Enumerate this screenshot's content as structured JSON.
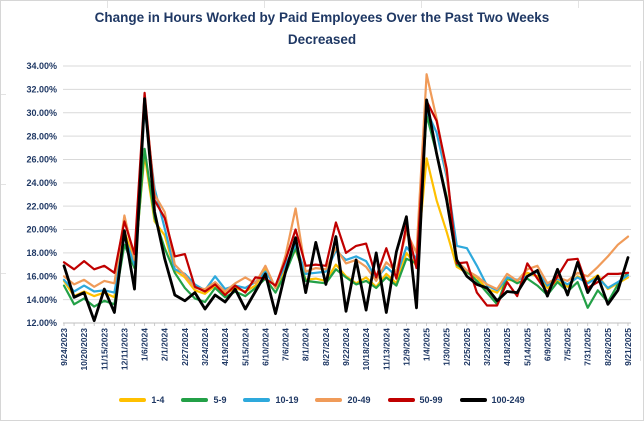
{
  "title": {
    "line1": "Change in Hours Worked by Paid Employees Over the Past Two Weeks",
    "line2": "Decreased"
  },
  "colors": {
    "title_text": "#1F3864",
    "axis_text": "#1F3864",
    "gridline": "#D9D9D9",
    "axis_line": "#BFBFBF",
    "background": "#FFFFFF"
  },
  "chart_data": {
    "type": "line",
    "title": "Change in Hours Worked by Paid Employees Over the Past Two Weeks Decreased",
    "legend_position": "bottom",
    "grid": "horizontal",
    "y_axis": {
      "min": 12,
      "max": 34,
      "step": 2,
      "format": "percent"
    },
    "y_tick_labels": [
      "12.00%",
      "14.00%",
      "16.00%",
      "18.00%",
      "20.00%",
      "22.00%",
      "24.00%",
      "26.00%",
      "28.00%",
      "30.00%",
      "32.00%",
      "34.00%"
    ],
    "x_label_interval": 2,
    "x_tick_labels": [
      "9/24/2023",
      "10/20/2023",
      "11/15/2023",
      "12/11/2023",
      "1/6/2024",
      "2/1/2024",
      "2/27/2024",
      "3/24/2024",
      "4/19/2024",
      "5/15/2024",
      "6/10/2024",
      "7/6/2024",
      "8/1/2024",
      "8/27/2024",
      "9/22/2024",
      "10/18/2024",
      "11/13/2024",
      "12/9/2024",
      "1/4/2025",
      "1/30/2025",
      "2/25/2025",
      "3/23/2025",
      "4/18/2025",
      "5/14/2025",
      "6/9/2025",
      "7/5/2025",
      "7/31/2025",
      "8/26/2025",
      "9/21/2025"
    ],
    "series": [
      {
        "name": "1-4",
        "color": "#FFC000",
        "values": [
          15.6,
          14.3,
          14.7,
          14.3,
          14.6,
          14.2,
          19.9,
          17.1,
          26.4,
          20.7,
          19.5,
          16.5,
          15.9,
          14.8,
          14.5,
          15.2,
          14.5,
          15.0,
          14.7,
          15.2,
          16.6,
          15.0,
          16.6,
          18.3,
          15.7,
          15.8,
          15.6,
          17.0,
          16.0,
          15.4,
          15.9,
          15.1,
          16.2,
          15.4,
          18.0,
          16.9,
          26.1,
          22.5,
          19.8,
          16.8,
          16.3,
          15.9,
          14.9,
          14.6,
          15.7,
          15.6,
          16.3,
          16.0,
          15.0,
          15.6,
          15.1,
          16.0,
          15.5,
          16.1,
          14.9,
          15.4,
          15.9
        ]
      },
      {
        "name": "5-9",
        "color": "#23A047",
        "values": [
          15.2,
          13.6,
          14.1,
          13.4,
          13.9,
          13.6,
          18.7,
          16.7,
          26.9,
          21.0,
          18.4,
          16.3,
          15.0,
          14.1,
          13.8,
          15.0,
          14.2,
          14.7,
          14.3,
          15.0,
          15.8,
          14.6,
          16.3,
          18.4,
          15.6,
          15.5,
          15.4,
          16.6,
          15.9,
          15.3,
          15.6,
          15.0,
          15.9,
          15.2,
          17.5,
          17.1,
          29.8,
          26.5,
          22.8,
          17.0,
          16.4,
          15.6,
          14.6,
          13.6,
          15.9,
          15.4,
          15.8,
          15.2,
          14.4,
          15.5,
          14.7,
          15.5,
          13.3,
          14.8,
          13.8,
          15.3,
          16.3
        ]
      },
      {
        "name": "10-19",
        "color": "#2EA9DC",
        "values": [
          15.7,
          14.7,
          15.2,
          14.7,
          14.8,
          14.6,
          19.4,
          17.0,
          30.4,
          23.5,
          20.1,
          16.6,
          16.2,
          15.3,
          14.8,
          16.0,
          14.9,
          15.2,
          15.0,
          15.5,
          16.4,
          15.1,
          17.0,
          18.7,
          16.2,
          16.3,
          16.4,
          18.2,
          17.4,
          17.7,
          17.3,
          15.8,
          16.8,
          16.0,
          18.5,
          17.5,
          30.2,
          28.3,
          24.5,
          18.6,
          18.4,
          16.9,
          15.2,
          14.8,
          15.9,
          15.7,
          16.0,
          16.4,
          15.2,
          15.8,
          15.3,
          15.9,
          15.4,
          15.9,
          15.0,
          15.5,
          16.1
        ]
      },
      {
        "name": "20-49",
        "color": "#F09B59",
        "values": [
          16.0,
          15.3,
          15.7,
          15.1,
          15.6,
          15.4,
          21.2,
          17.4,
          31.3,
          23.0,
          21.5,
          17.0,
          16.1,
          15.0,
          14.9,
          15.5,
          14.7,
          15.4,
          15.9,
          15.4,
          16.9,
          15.0,
          17.8,
          21.8,
          16.4,
          16.7,
          16.6,
          18.4,
          17.1,
          17.4,
          16.8,
          15.6,
          17.2,
          16.4,
          19.8,
          18.0,
          33.3,
          29.5,
          24.8,
          17.3,
          16.5,
          16.0,
          15.3,
          14.9,
          16.2,
          15.6,
          16.6,
          16.9,
          15.4,
          15.9,
          15.6,
          16.3,
          16.0,
          16.8,
          17.7,
          18.7,
          19.4
        ]
      },
      {
        "name": "50-99",
        "color": "#C00000",
        "values": [
          17.2,
          16.6,
          17.3,
          16.6,
          16.9,
          16.3,
          20.7,
          17.9,
          31.7,
          22.5,
          21.0,
          17.7,
          17.9,
          15.1,
          14.7,
          15.3,
          14.4,
          15.2,
          14.6,
          15.9,
          15.8,
          15.2,
          17.4,
          20.0,
          16.9,
          17.0,
          16.9,
          20.6,
          18.0,
          18.6,
          18.8,
          15.9,
          18.4,
          15.8,
          20.4,
          16.7,
          31.0,
          29.3,
          25.2,
          17.1,
          17.2,
          14.6,
          13.5,
          13.5,
          15.5,
          14.3,
          17.1,
          15.8,
          14.6,
          16.0,
          17.4,
          17.5,
          15.0,
          15.5,
          16.2,
          16.2,
          16.3
        ]
      },
      {
        "name": "100-249",
        "color": "#000000",
        "values": [
          16.9,
          14.2,
          14.6,
          12.2,
          14.9,
          12.9,
          19.9,
          14.9,
          31.2,
          21.5,
          17.5,
          14.4,
          13.9,
          14.6,
          13.2,
          14.4,
          13.8,
          14.9,
          13.2,
          14.7,
          16.2,
          12.8,
          16.4,
          19.3,
          14.6,
          18.9,
          15.3,
          19.4,
          13.0,
          17.4,
          13.1,
          18.0,
          12.9,
          18.1,
          21.1,
          13.3,
          31.1,
          26.5,
          22.5,
          17.4,
          16.0,
          15.3,
          15.0,
          13.9,
          14.7,
          14.6,
          16.0,
          16.5,
          14.3,
          16.6,
          14.4,
          17.2,
          14.6,
          16.0,
          13.6,
          14.8,
          17.6
        ]
      }
    ]
  }
}
